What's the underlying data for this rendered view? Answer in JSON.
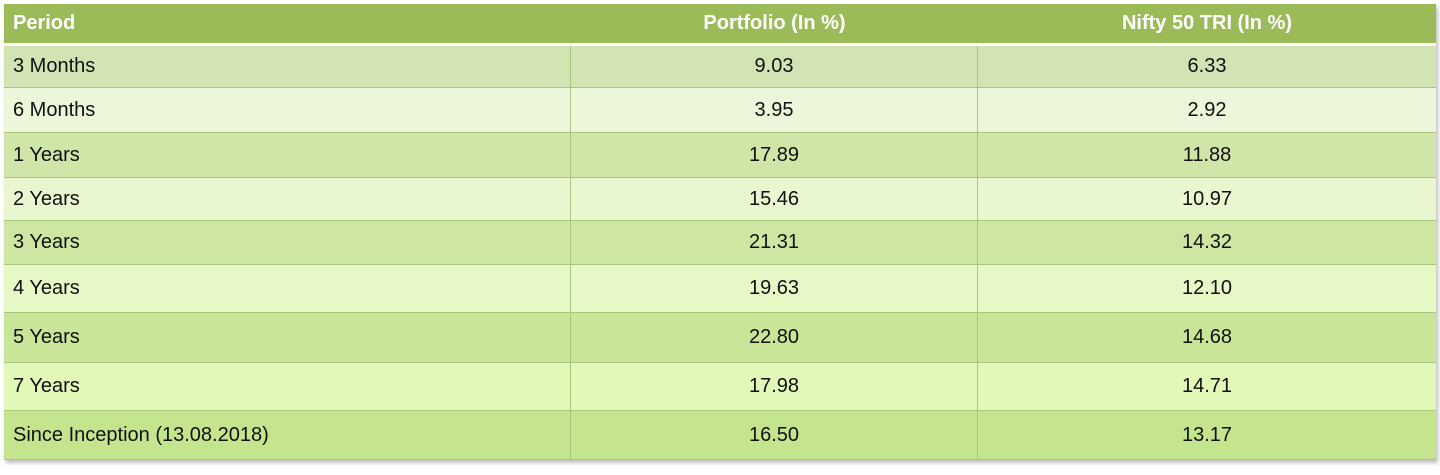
{
  "table": {
    "header": [
      "Period",
      "Portfolio (In %)",
      "Nifty 50 TRI (In %)"
    ],
    "rows": [
      [
        "3 Months",
        "9.03",
        "6.33"
      ],
      [
        "6 Months",
        "3.95",
        "2.92"
      ],
      [
        "1 Years",
        "17.89",
        "11.88"
      ],
      [
        "2 Years",
        "15.46",
        "10.97"
      ],
      [
        "3 Years",
        "21.31",
        "14.32"
      ],
      [
        "4 Years",
        "19.63",
        "12.10"
      ],
      [
        "5 Years",
        "22.80",
        "14.68"
      ],
      [
        "7 Years",
        "17.98",
        "14.71"
      ],
      [
        "Since Inception (13.08.2018)",
        "16.50",
        "13.17"
      ]
    ]
  }
}
